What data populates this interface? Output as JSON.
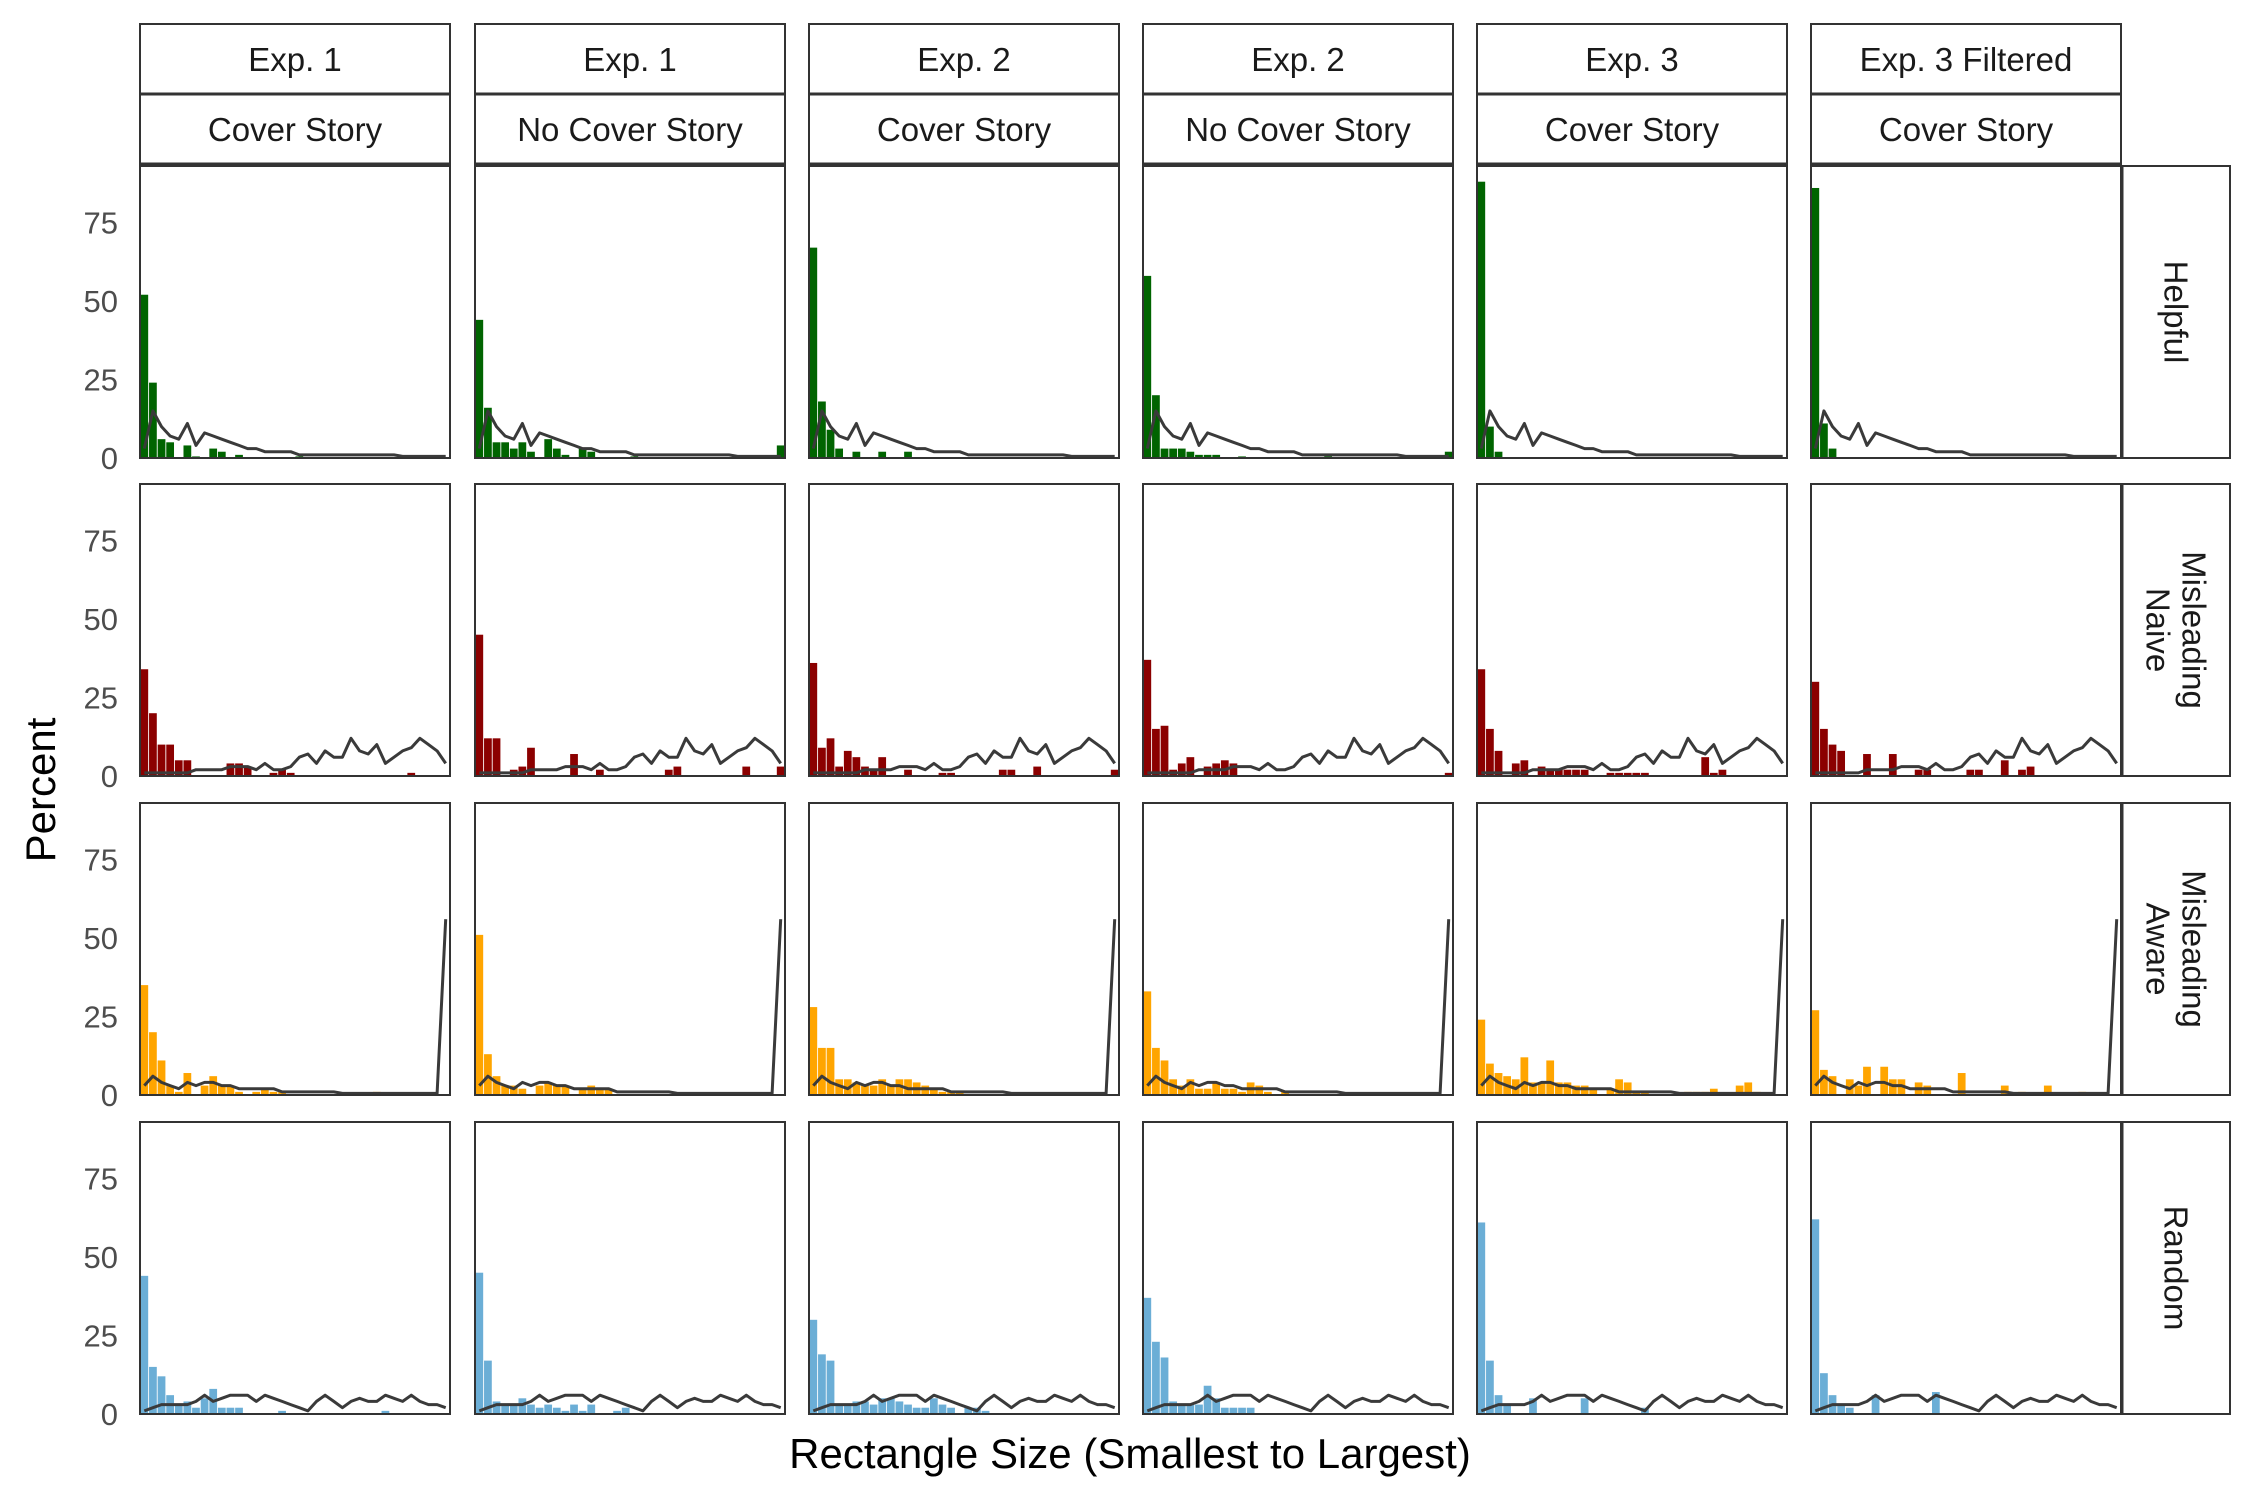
{
  "chart_data": {
    "type": "bar",
    "ylabel": "Percent",
    "xlabel": "Rectangle Size (Smallest to Largest)",
    "ylim": [
      0,
      93
    ],
    "yticks": [
      0,
      25,
      50,
      75
    ],
    "n_bins": 36,
    "grid": false,
    "columns": [
      {
        "experiment": "Exp. 1",
        "condition": "Cover Story"
      },
      {
        "experiment": "Exp. 1",
        "condition": "No Cover Story"
      },
      {
        "experiment": "Exp. 2",
        "condition": "Cover Story"
      },
      {
        "experiment": "Exp. 2",
        "condition": "No Cover Story"
      },
      {
        "experiment": "Exp. 3",
        "condition": "Cover Story"
      },
      {
        "experiment": "Exp. 3 Filtered",
        "condition": "Cover Story"
      }
    ],
    "rows": [
      {
        "label": [
          "Helpful"
        ],
        "color": "#006400",
        "reference_line": [
          3,
          15,
          10,
          7,
          6,
          11,
          4,
          8,
          7,
          6,
          5,
          4,
          3,
          3,
          2,
          2,
          2,
          2,
          1,
          1,
          1,
          1,
          1,
          1,
          1,
          1,
          1,
          1,
          1,
          1,
          0.5,
          0.5,
          0.5,
          0.5,
          0.5,
          0.5
        ],
        "bars": [
          [
            52,
            24,
            6,
            5,
            0,
            4,
            0.5,
            0,
            3,
            2,
            0,
            1,
            0,
            0,
            0,
            0,
            0,
            0,
            0.5,
            0,
            0,
            0,
            0,
            0,
            0,
            0,
            0,
            0,
            0,
            0,
            0,
            0,
            0,
            0,
            0,
            0
          ],
          [
            44,
            16,
            5,
            5,
            3,
            5,
            2,
            0,
            6,
            3,
            1,
            0,
            3,
            2,
            0,
            0,
            0,
            0,
            0.5,
            0,
            0,
            0,
            0,
            0,
            0,
            0,
            0,
            0,
            0,
            0,
            0,
            0,
            0,
            0,
            0,
            4
          ],
          [
            67,
            18,
            9,
            3,
            0,
            2,
            0,
            0,
            2,
            0,
            0,
            2,
            0,
            0,
            0,
            0,
            0,
            0,
            0,
            0,
            0,
            0,
            0,
            0,
            0,
            0,
            0,
            0,
            0,
            0,
            0,
            0,
            0,
            0,
            0,
            0
          ],
          [
            58,
            20,
            3,
            3,
            3,
            2,
            1,
            1,
            1,
            0,
            0,
            0.5,
            0,
            0,
            0,
            0,
            0,
            0,
            0,
            0,
            0,
            0.5,
            0,
            0,
            0,
            0,
            0,
            0,
            0,
            0,
            0,
            0,
            0,
            0,
            0,
            2
          ],
          [
            88,
            10,
            2,
            0,
            0,
            0,
            0,
            0,
            0,
            0,
            0,
            0,
            0,
            0,
            0,
            0,
            0,
            0,
            0,
            0,
            0,
            0,
            0,
            0,
            0,
            0,
            0,
            0,
            0,
            0,
            0,
            0,
            0,
            0,
            0,
            0
          ],
          [
            86,
            11,
            3,
            0,
            0,
            0,
            0,
            0,
            0,
            0,
            0,
            0,
            0,
            0,
            0,
            0,
            0,
            0,
            0,
            0,
            0,
            0,
            0,
            0,
            0,
            0,
            0,
            0,
            0,
            0,
            0,
            0,
            0,
            0,
            0,
            0
          ]
        ]
      },
      {
        "label": [
          "Misleading",
          "Naive"
        ],
        "color": "#8B0000",
        "reference_line": [
          1,
          1,
          1,
          1,
          1,
          1,
          2,
          2,
          2,
          2,
          3,
          3,
          3,
          2,
          4,
          2,
          2,
          3,
          6,
          7,
          4,
          8,
          6,
          6,
          12,
          8,
          7,
          10,
          4,
          6,
          8,
          9,
          12,
          10,
          8,
          4
        ],
        "bars": [
          [
            34,
            20,
            10,
            10,
            5,
            5,
            0,
            0,
            0,
            0,
            4,
            4,
            3,
            0,
            0,
            1,
            2,
            1,
            0,
            0,
            0,
            0,
            0,
            0,
            0,
            0,
            0,
            0,
            0,
            0,
            0,
            1,
            0,
            0,
            0,
            0
          ],
          [
            45,
            12,
            12,
            0,
            2,
            3,
            9,
            0,
            0,
            0,
            0,
            7,
            0,
            0,
            2,
            0,
            0,
            0,
            0,
            0,
            0,
            0,
            2,
            3,
            0,
            0,
            0,
            0,
            0,
            0,
            0,
            3,
            0,
            0,
            0,
            3
          ],
          [
            36,
            9,
            12,
            3,
            8,
            6,
            3,
            2,
            6,
            0,
            0,
            2,
            0,
            0,
            0,
            1,
            1,
            0,
            0,
            0,
            0,
            0,
            2,
            2,
            0,
            0,
            3,
            0,
            0,
            0,
            0,
            0,
            0,
            0,
            0,
            2
          ],
          [
            37,
            15,
            16,
            2,
            4,
            6,
            0,
            3,
            4,
            5,
            4,
            0,
            0,
            0,
            0,
            0,
            0,
            0,
            0,
            0,
            0,
            0,
            0,
            0,
            0,
            0,
            0,
            0,
            0,
            0,
            0,
            0,
            0,
            0,
            0,
            1
          ],
          [
            34,
            15,
            8,
            0,
            4,
            5,
            0,
            3,
            2,
            2,
            2,
            2,
            2,
            0,
            0,
            1,
            1,
            1,
            1,
            1,
            0,
            0,
            0,
            0,
            0,
            0,
            6,
            1,
            2,
            0,
            0,
            0,
            0,
            0,
            0,
            0
          ],
          [
            30,
            15,
            10,
            8,
            0,
            0,
            7,
            0,
            0,
            7,
            0,
            0,
            2,
            2,
            0,
            0,
            0,
            0,
            2,
            2,
            0,
            0,
            5,
            0,
            2,
            3,
            0,
            0,
            0,
            0,
            0,
            0,
            0,
            0,
            0,
            0
          ]
        ]
      },
      {
        "label": [
          "Misleading",
          "Aware"
        ],
        "color": "#FFA500",
        "reference_line": [
          3,
          6,
          4,
          3,
          2,
          4,
          3,
          4,
          4,
          3,
          3,
          2,
          2,
          2,
          2,
          2,
          1,
          1,
          1,
          1,
          1,
          1,
          1,
          0.5,
          0.5,
          0.5,
          0.5,
          0.5,
          0.5,
          0.5,
          0.5,
          0.5,
          0.5,
          0.5,
          0.5,
          56
        ],
        "bars": [
          [
            35,
            20,
            11,
            3,
            1,
            7,
            0,
            3,
            6,
            3,
            3,
            1,
            0,
            1,
            2,
            1,
            1,
            0,
            0,
            0,
            0,
            0,
            0,
            0,
            0,
            0,
            0,
            1,
            0,
            0,
            0,
            0,
            0,
            0,
            0,
            0
          ],
          [
            51,
            13,
            6,
            3,
            3,
            2,
            0,
            3,
            4,
            3,
            3,
            0,
            2,
            3,
            2,
            2,
            0,
            0,
            0,
            0,
            0,
            0,
            0,
            0,
            0,
            0,
            0,
            0,
            0,
            0,
            0,
            0,
            0,
            0,
            0,
            0
          ],
          [
            28,
            15,
            15,
            5,
            5,
            4,
            3,
            3,
            5,
            3,
            5,
            5,
            4,
            3,
            2,
            1,
            1,
            1,
            0,
            0,
            0,
            0,
            0,
            0,
            0,
            0,
            0,
            0,
            0,
            0,
            0,
            0,
            0,
            0,
            0,
            0
          ],
          [
            33,
            15,
            11,
            5,
            3,
            5,
            2,
            2,
            4,
            2,
            2,
            1,
            4,
            3,
            1,
            0,
            1,
            0,
            0,
            0,
            0,
            0,
            0,
            0,
            0,
            0,
            0,
            0,
            0,
            0,
            0,
            0,
            0,
            0,
            0,
            0
          ],
          [
            24,
            10,
            7,
            6,
            5,
            12,
            4,
            4,
            11,
            4,
            4,
            3,
            3,
            2,
            0,
            2,
            5,
            4,
            1,
            1,
            0,
            0,
            0,
            0,
            1,
            1,
            1,
            2,
            0,
            0,
            3,
            4,
            1,
            0,
            0,
            0
          ],
          [
            27,
            8,
            6,
            0,
            5,
            3,
            9,
            0,
            9,
            5,
            5,
            0,
            4,
            3,
            0,
            0,
            0,
            7,
            0,
            0,
            0,
            0,
            3,
            0,
            1,
            0,
            0,
            3,
            0,
            0,
            0,
            1,
            0,
            0,
            0,
            0
          ]
        ]
      },
      {
        "label": [
          "Random"
        ],
        "color": "#6BAED6",
        "reference_line": [
          1,
          2,
          3,
          3,
          3,
          3,
          4,
          6,
          4,
          5,
          6,
          6,
          6,
          4,
          6,
          5,
          4,
          3,
          2,
          1,
          4,
          6,
          4,
          2,
          4,
          5,
          4,
          4,
          6,
          5,
          4,
          6,
          4,
          3,
          3,
          2
        ],
        "bars": [
          [
            44,
            15,
            12,
            6,
            3,
            4,
            2,
            5,
            8,
            2,
            2,
            2,
            0,
            0,
            0,
            0,
            1,
            0,
            0,
            0,
            0,
            0,
            0,
            0,
            0,
            0,
            0,
            0,
            1,
            0,
            0,
            0,
            0,
            0,
            0,
            0
          ],
          [
            45,
            17,
            4,
            3,
            3,
            5,
            3,
            2,
            3,
            2,
            1,
            3,
            1,
            3,
            0,
            0,
            1,
            2,
            0,
            0,
            0,
            0,
            0,
            0,
            0,
            0,
            0,
            0,
            0,
            0,
            0,
            0,
            0,
            0,
            0,
            0
          ],
          [
            30,
            19,
            17,
            3,
            3,
            4,
            4,
            3,
            5,
            5,
            4,
            3,
            2,
            2,
            5,
            3,
            2,
            0,
            2,
            2,
            1,
            0,
            0,
            0,
            0,
            0,
            0,
            0,
            0,
            0,
            0,
            0,
            0,
            0,
            0,
            0
          ],
          [
            37,
            23,
            18,
            4,
            3,
            3,
            3,
            9,
            5,
            2,
            2,
            2,
            2,
            0,
            0,
            0,
            0,
            0,
            0,
            0,
            0,
            0,
            0,
            0,
            0,
            0,
            0,
            0,
            0,
            0,
            0,
            0,
            0,
            0,
            0,
            0
          ],
          [
            61,
            17,
            6,
            3,
            0,
            0,
            5,
            0,
            0,
            0,
            0,
            0,
            5,
            0,
            0,
            0,
            0,
            0,
            0,
            2,
            0,
            0,
            0,
            0,
            0,
            0,
            0,
            0,
            0,
            0,
            0,
            0,
            0,
            0,
            0,
            0
          ],
          [
            62,
            13,
            6,
            3,
            2,
            0,
            0,
            6,
            0,
            0,
            0,
            0,
            0,
            0,
            7,
            0,
            0,
            0,
            0,
            0,
            0,
            0,
            0,
            0,
            0,
            0,
            0,
            0,
            0,
            0,
            0,
            0,
            0,
            0,
            0,
            0
          ]
        ]
      }
    ]
  }
}
